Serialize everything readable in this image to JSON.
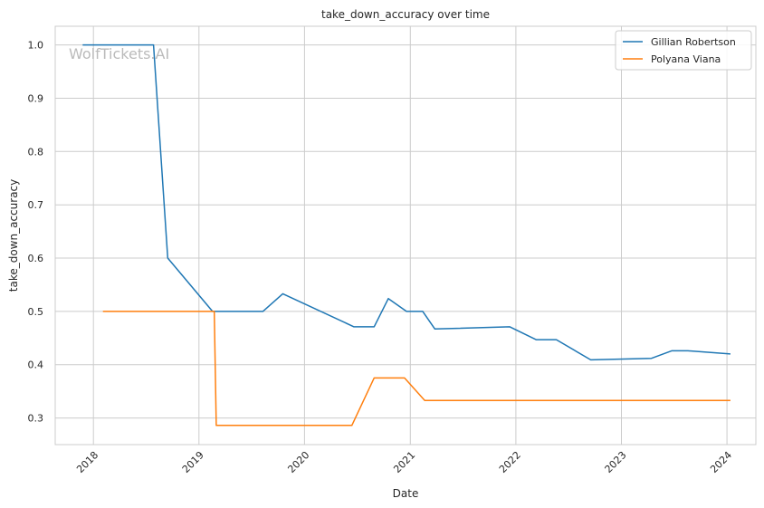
{
  "chart_data": {
    "type": "line",
    "title": "take_down_accuracy over time",
    "xlabel": "Date",
    "ylabel": "take_down_accuracy",
    "watermark": "WolfTickets.AI",
    "xlim": [
      "2017-08-22",
      "2024-04-10"
    ],
    "ylim": [
      0.25,
      1.035
    ],
    "x_ticks": [
      "2018-01-01",
      "2019-01-01",
      "2020-01-01",
      "2021-01-01",
      "2022-01-01",
      "2023-01-01",
      "2024-01-01"
    ],
    "x_tick_labels": [
      "2018",
      "2019",
      "2020",
      "2021",
      "2022",
      "2023",
      "2024"
    ],
    "y_ticks": [
      0.3,
      0.4,
      0.5,
      0.6,
      0.7,
      0.8,
      0.9,
      1.0
    ],
    "y_tick_labels": [
      "0.3",
      "0.4",
      "0.5",
      "0.6",
      "0.7",
      "0.8",
      "0.9",
      "1.0"
    ],
    "grid": true,
    "legend_position": "top-right",
    "series": [
      {
        "name": "Gillian Robertson",
        "color": "#1f77b4",
        "points": [
          [
            "2017-11-25",
            1.0
          ],
          [
            "2018-07-28",
            1.0
          ],
          [
            "2018-09-15",
            0.6
          ],
          [
            "2019-02-17",
            0.5
          ],
          [
            "2019-08-10",
            0.5
          ],
          [
            "2019-10-18",
            0.533
          ],
          [
            "2020-06-20",
            0.471
          ],
          [
            "2020-08-29",
            0.471
          ],
          [
            "2020-10-17",
            0.524
          ],
          [
            "2020-12-19",
            0.5
          ],
          [
            "2021-02-13",
            0.5
          ],
          [
            "2021-03-27",
            0.467
          ],
          [
            "2021-12-11",
            0.471
          ],
          [
            "2022-03-12",
            0.447
          ],
          [
            "2022-05-21",
            0.447
          ],
          [
            "2022-09-17",
            0.409
          ],
          [
            "2023-04-15",
            0.412
          ],
          [
            "2023-06-24",
            0.426
          ],
          [
            "2023-08-19",
            0.426
          ],
          [
            "2024-01-13",
            0.42
          ]
        ]
      },
      {
        "name": "Polyana Viana",
        "color": "#ff7f0e",
        "points": [
          [
            "2018-02-03",
            0.5
          ],
          [
            "2019-02-23",
            0.5
          ],
          [
            "2019-03-02",
            0.286
          ],
          [
            "2020-06-13",
            0.286
          ],
          [
            "2020-08-29",
            0.375
          ],
          [
            "2020-12-12",
            0.375
          ],
          [
            "2021-02-20",
            0.333
          ],
          [
            "2024-01-13",
            0.333
          ]
        ]
      }
    ]
  }
}
